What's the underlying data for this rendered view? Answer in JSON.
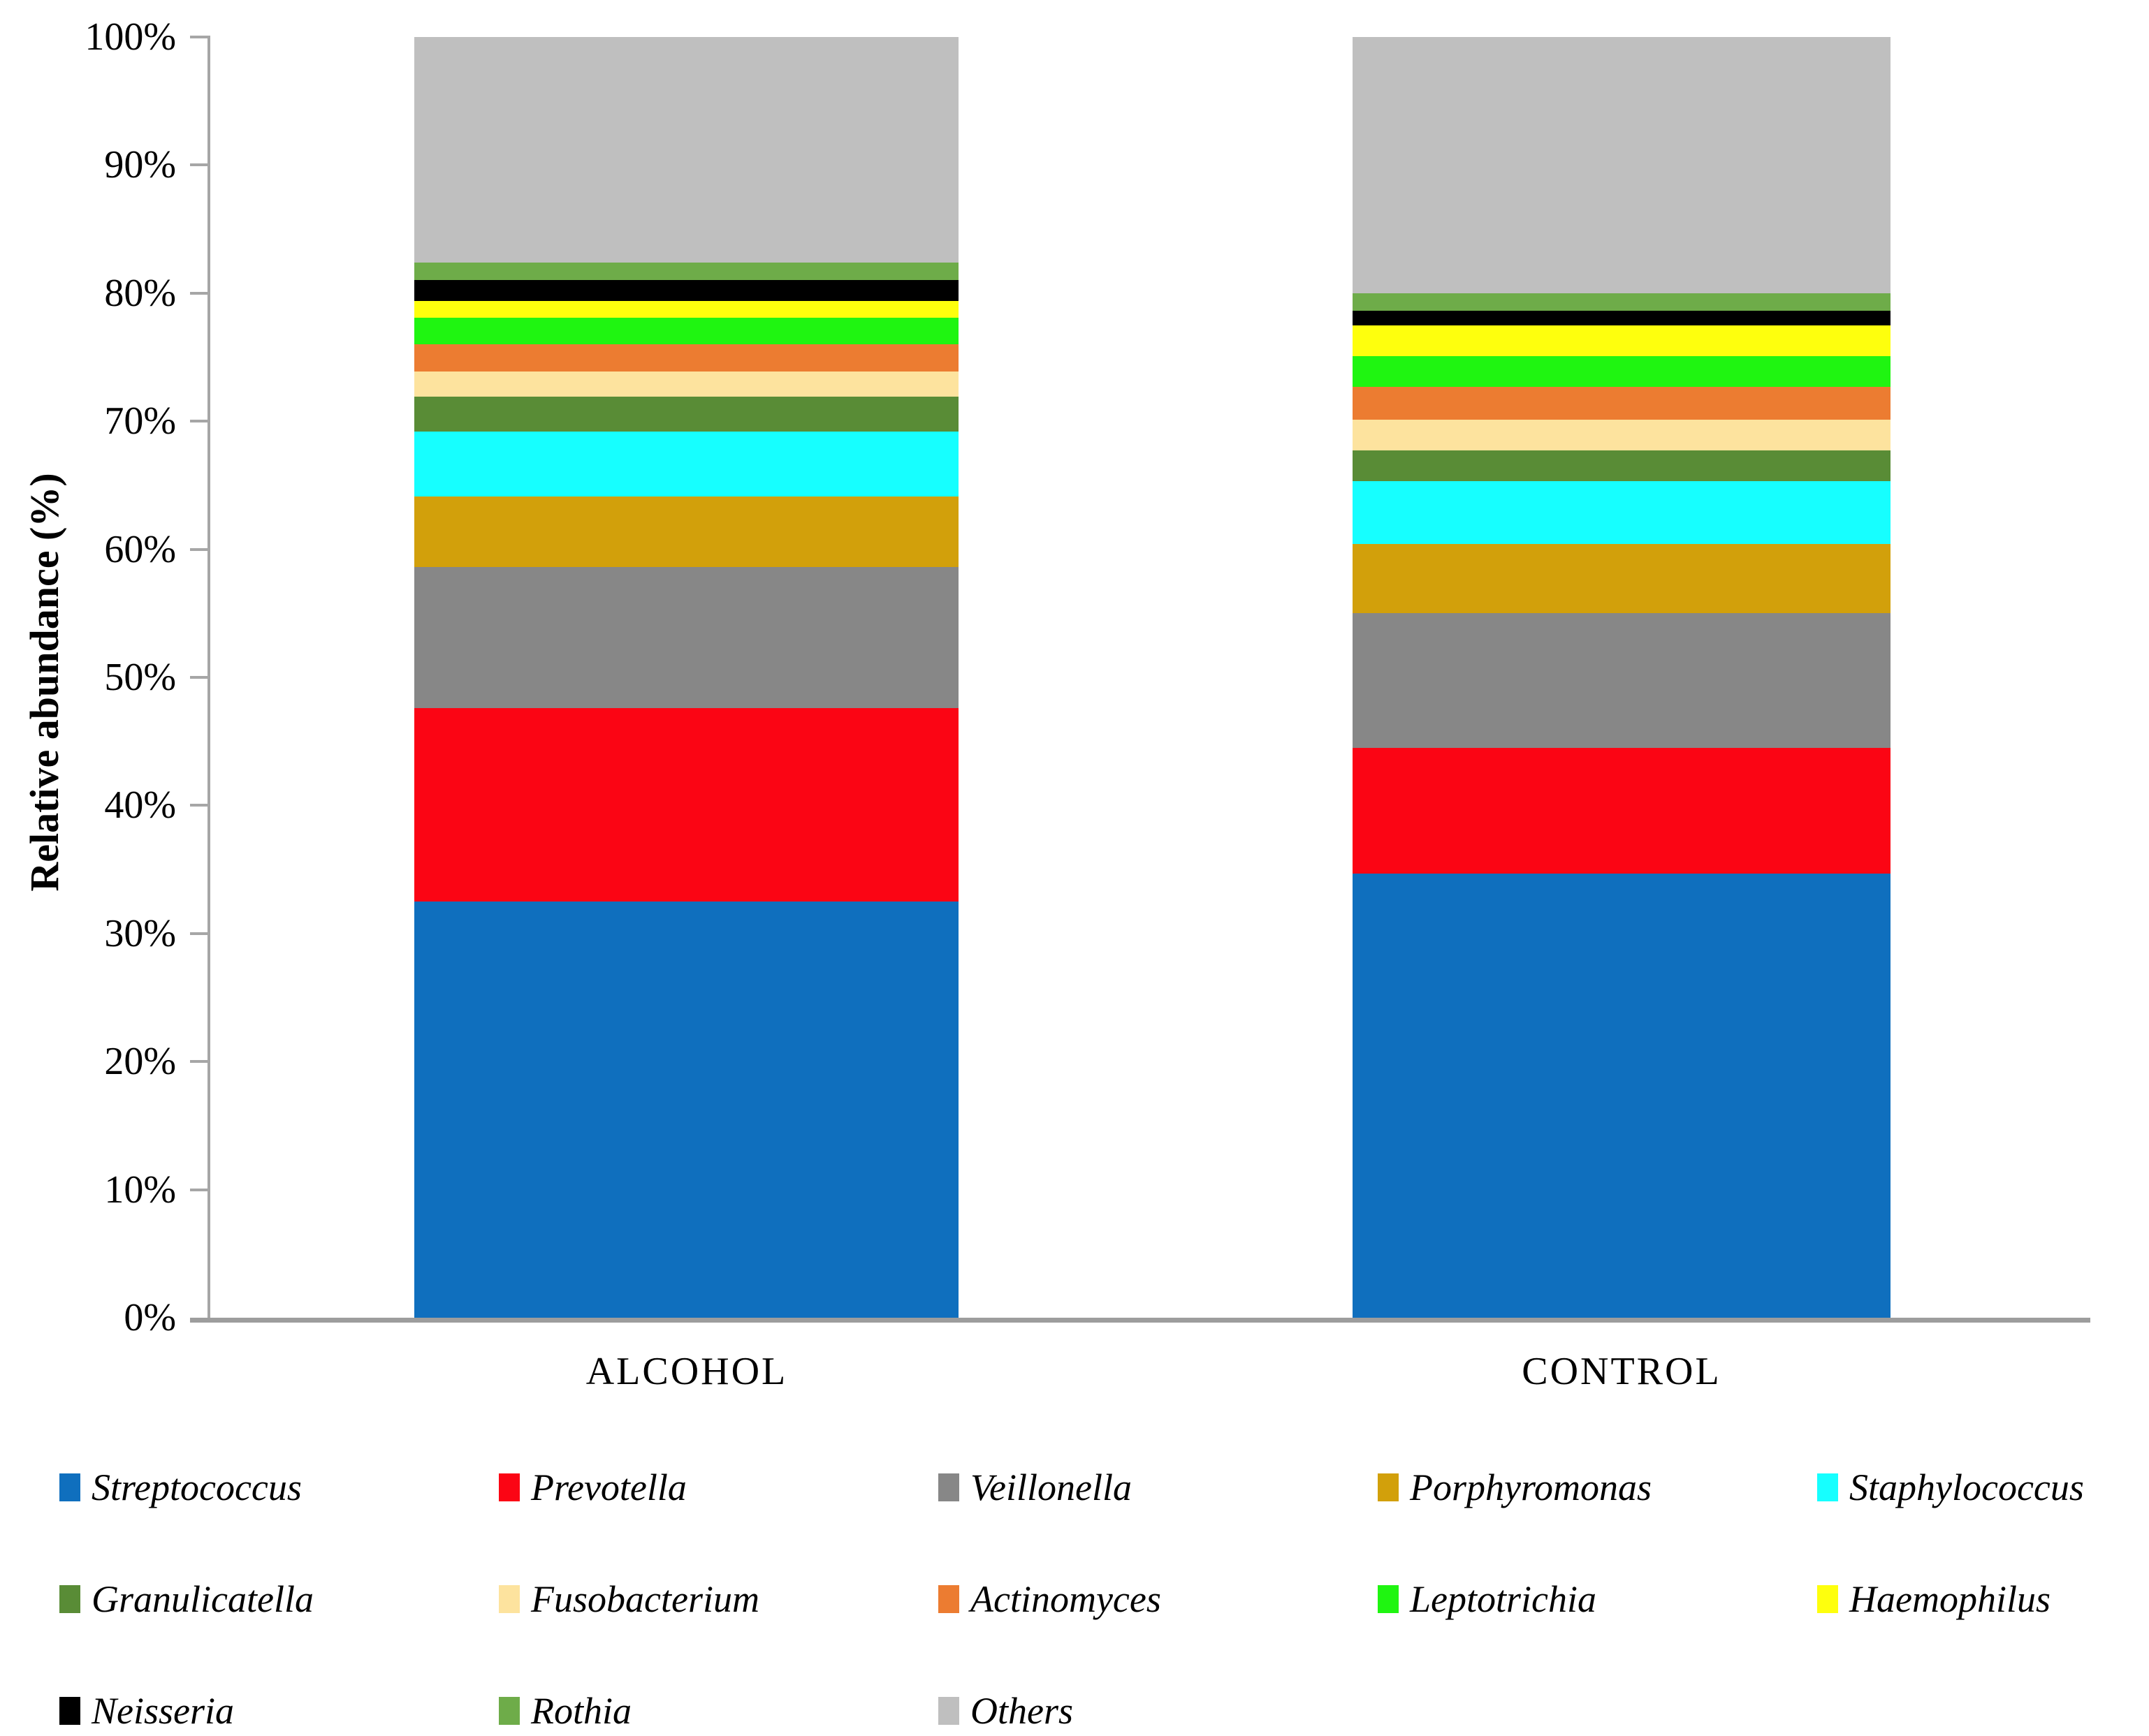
{
  "figure": {
    "y_axis_title": "Relative abundance (%)",
    "category_labels": [
      "ALCOHOL",
      "CONTROL"
    ]
  },
  "chart_data": {
    "type": "bar",
    "subtype": "stacked-percent-column",
    "title": "",
    "xlabel": "",
    "ylabel": "Relative abundance (%)",
    "ylim": [
      0,
      100
    ],
    "ytick_labels": [
      "0%",
      "10%",
      "20%",
      "30%",
      "40%",
      "50%",
      "60%",
      "70%",
      "80%",
      "90%",
      "100%"
    ],
    "grid": false,
    "legend_position": "bottom",
    "axis_color": "#a6a6a6",
    "categories": [
      "ALCOHOL",
      "CONTROL"
    ],
    "series": [
      {
        "name": "Streptococcus",
        "color": "#0F6FBE",
        "values": [
          32.5,
          34.7
        ]
      },
      {
        "name": "Prevotella",
        "color": "#FB0514",
        "values": [
          15.1,
          9.8
        ]
      },
      {
        "name": "Veillonella",
        "color": "#878787",
        "values": [
          11.0,
          10.5
        ]
      },
      {
        "name": "Porphyromonas",
        "color": "#D2A00B",
        "values": [
          5.5,
          5.4
        ]
      },
      {
        "name": "Staphylococcus",
        "color": "#16FFFF",
        "values": [
          5.1,
          4.9
        ]
      },
      {
        "name": "Granulicatella",
        "color": "#598C36",
        "values": [
          2.7,
          2.4
        ]
      },
      {
        "name": "Fusobacterium",
        "color": "#FDE39E",
        "values": [
          2.0,
          2.4
        ]
      },
      {
        "name": "Actinomyces",
        "color": "#EC7C31",
        "values": [
          2.1,
          2.6
        ]
      },
      {
        "name": "Leptotrichia",
        "color": "#1FF511",
        "values": [
          2.1,
          2.4
        ]
      },
      {
        "name": "Haemophilus",
        "color": "#FEFF0D",
        "values": [
          1.3,
          2.4
        ]
      },
      {
        "name": "Neisseria",
        "color": "#000000",
        "values": [
          1.6,
          1.1
        ]
      },
      {
        "name": "Rothia",
        "color": "#6EAC49",
        "values": [
          1.4,
          1.4
        ]
      },
      {
        "name": "Others",
        "color": "#BFBFBF",
        "values": [
          17.6,
          20.0
        ]
      }
    ]
  }
}
